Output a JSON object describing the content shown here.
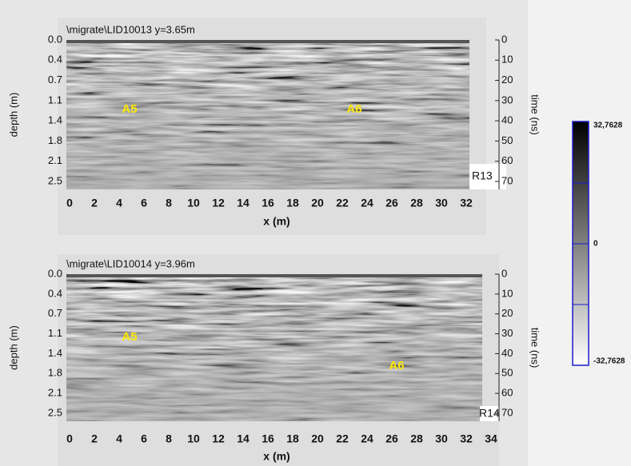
{
  "panels": [
    {
      "title": "\\migrate\\LID10013   y=3.65m",
      "depth_label": "depth (m)",
      "time_label": "time (ns)",
      "x_label": "x (m)",
      "profile": "R13",
      "depth_ticks": [
        "0.0",
        "0.4",
        "0.7",
        "1.1",
        "1.4",
        "1.8",
        "2.1",
        "2.5"
      ],
      "time_ticks": [
        "0",
        "10",
        "20",
        "30",
        "40",
        "50",
        "60",
        "70"
      ],
      "x_ticks": [
        "0",
        "2",
        "4",
        "6",
        "8",
        "10",
        "12",
        "14",
        "16",
        "18",
        "20",
        "22",
        "24",
        "26",
        "28",
        "30",
        "32"
      ],
      "annotations": [
        "A5",
        "A6"
      ]
    },
    {
      "title": "\\migrate\\LID10014   y=3.96m",
      "depth_label": "depth (m)",
      "time_label": "time (ns)",
      "x_label": "x (m)",
      "profile": "R14",
      "depth_ticks": [
        "0.0",
        "0.4",
        "0.7",
        "1.1",
        "1.4",
        "1.8",
        "2.1",
        "2.5"
      ],
      "time_ticks": [
        "0",
        "10",
        "20",
        "30",
        "40",
        "50",
        "60",
        "70"
      ],
      "x_ticks": [
        "0",
        "2",
        "4",
        "6",
        "8",
        "10",
        "12",
        "14",
        "16",
        "18",
        "20",
        "22",
        "24",
        "26",
        "28",
        "30",
        "32",
        "34"
      ],
      "annotations": [
        "A5",
        "A6"
      ]
    }
  ],
  "colorbar": {
    "max": "32,7628",
    "mid": "0",
    "min": "-32,7628"
  }
}
